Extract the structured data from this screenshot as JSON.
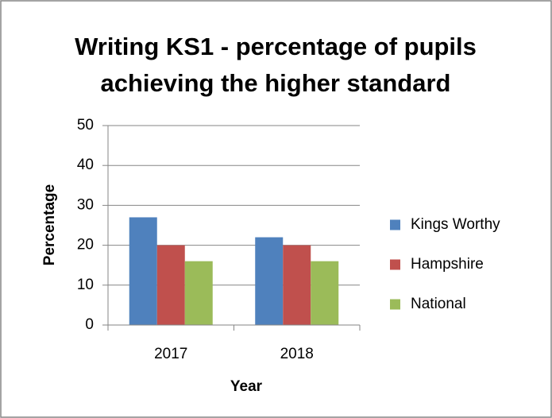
{
  "chart_data": {
    "type": "bar",
    "title": "Writing KS1 - percentage of pupils achieving the higher standard",
    "x_label": "Year",
    "y_label": "Percentage",
    "categories": [
      "2017",
      "2018"
    ],
    "series": [
      {
        "name": "Kings Worthy",
        "color": "#4f81bd",
        "values": [
          27,
          22
        ]
      },
      {
        "name": "Hampshire",
        "color": "#c0504d",
        "values": [
          20,
          20
        ]
      },
      {
        "name": "National",
        "color": "#9bbb59",
        "values": [
          16,
          16
        ]
      }
    ],
    "ylim": [
      0,
      50
    ],
    "yticks": [
      0,
      10,
      20,
      30,
      40,
      50
    ],
    "grid": true,
    "legend": "right"
  }
}
